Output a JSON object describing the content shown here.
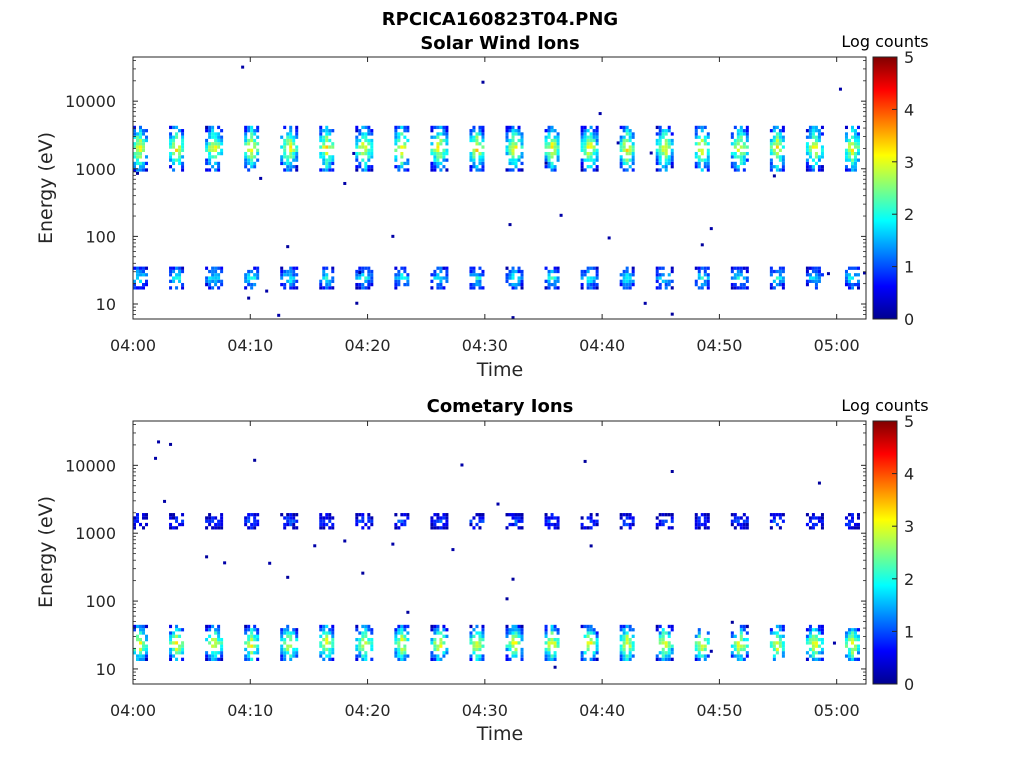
{
  "figure_title": "RPCICA160823T04.PNG",
  "colorbar_label": "Log counts",
  "colorbar_ticks": [
    "0",
    "1",
    "2",
    "3",
    "4",
    "5"
  ],
  "chart_data": [
    {
      "type": "heatmap",
      "title": "Solar Wind Ions",
      "xlabel": "Time",
      "ylabel": "Energy (eV)",
      "x_ticks": [
        "04:00",
        "04:10",
        "04:20",
        "04:30",
        "04:40",
        "04:50",
        "05:00"
      ],
      "y_ticks": [
        "10",
        "100",
        "1000",
        "10000"
      ],
      "y_scale": "log",
      "ylim": [
        6,
        45000
      ],
      "xlim_minutes": [
        0,
        62.5
      ],
      "clim": [
        0,
        5
      ],
      "scan_period_min": 3.2,
      "bands": [
        {
          "energy_lo": 900,
          "energy_hi": 4000,
          "peak_log_counts": 3.0
        },
        {
          "energy_lo": 15,
          "energy_hi": 35,
          "peak_log_counts": 1.8
        }
      ]
    },
    {
      "type": "heatmap",
      "title": "Cometary Ions",
      "xlabel": "Time",
      "ylabel": "Energy (eV)",
      "x_ticks": [
        "04:00",
        "04:10",
        "04:20",
        "04:30",
        "04:40",
        "04:50",
        "05:00"
      ],
      "y_ticks": [
        "10",
        "100",
        "1000",
        "10000"
      ],
      "y_scale": "log",
      "ylim": [
        6,
        45000
      ],
      "xlim_minutes": [
        0,
        62.5
      ],
      "clim": [
        0,
        5
      ],
      "scan_period_min": 3.2,
      "bands": [
        {
          "energy_lo": 1100,
          "energy_hi": 1800,
          "peak_log_counts": 1.0
        },
        {
          "energy_lo": 12,
          "energy_hi": 40,
          "peak_log_counts": 3.0
        }
      ]
    }
  ]
}
